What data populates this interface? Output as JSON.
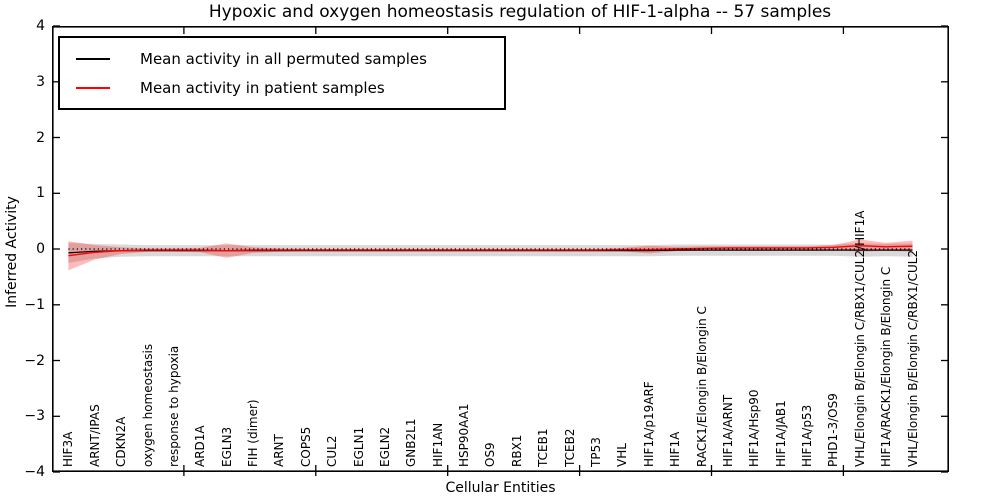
{
  "title": "Hypoxic and oxygen homeostasis regulation of HIF-1-alpha -- 57 samples",
  "axes": {
    "ylabel": "Inferred Activity",
    "xlabel": "Cellular Entities",
    "ytick_labels": [
      "4",
      "3",
      "2",
      "1",
      "0",
      "−1",
      "−2",
      "−3",
      "−4"
    ]
  },
  "legend": {
    "items": [
      {
        "label": "Mean activity in all permuted samples",
        "color": "#000000"
      },
      {
        "label": "Mean activity in patient samples",
        "color": "#ff0000"
      }
    ]
  },
  "colors": {
    "frame": "#000000",
    "permuted_line": "#000000",
    "patient_line": "#ff0000",
    "permuted_band": "rgba(128,128,128,0.30)",
    "patient_band": "rgba(255,0,0,0.27)"
  },
  "chart_data": {
    "type": "line",
    "title": "Hypoxic and oxygen homeostasis regulation of HIF-1-alpha -- 57 samples",
    "xlabel": "Cellular Entities",
    "ylabel": "Inferred Activity",
    "ylim": [
      -4,
      4
    ],
    "yticks": [
      4,
      3,
      2,
      1,
      0,
      -1,
      -2,
      -3,
      -4
    ],
    "xtick_positions": [
      5,
      10,
      15,
      20,
      25,
      30
    ],
    "zero_line": true,
    "grid": false,
    "legend_position": "upper left",
    "categories": [
      "HIF3A",
      "ARNT/IPAS",
      "CDKN2A",
      "oxygen homeostasis",
      "response to hypoxia",
      "ARD1A",
      "EGLN3",
      "FIH (dimer)",
      "ARNT",
      "COPS5",
      "CUL2",
      "EGLN1",
      "EGLN2",
      "GNB2L1",
      "HIF1AN",
      "HSP90AA1",
      "OS9",
      "RBX1",
      "TCEB1",
      "TCEB2",
      "TP53",
      "VHL",
      "HIF1A/p19ARF",
      "HIF1A",
      "RACK1/Elongin B/Elongin C",
      "HIF1A/ARNT",
      "HIF1A/Hsp90",
      "HIF1A/JAB1",
      "HIF1A/p53",
      "PHD1-3/OS9",
      "VHL/Elongin B/Elongin C/RBX1/CUL2/HIF1A",
      "HIF1A/RACK1/Elongin B/Elongin C",
      "VHL/Elongin B/Elongin C/RBX1/CUL2"
    ],
    "series": [
      {
        "name": "Mean activity in all permuted samples",
        "color": "#000000",
        "line_width": 1.2,
        "band_fill": "rgba(128,128,128,0.30)",
        "values": [
          -0.07,
          -0.04,
          -0.03,
          -0.03,
          -0.03,
          -0.03,
          -0.03,
          -0.03,
          -0.03,
          -0.03,
          -0.03,
          -0.03,
          -0.03,
          -0.03,
          -0.03,
          -0.03,
          -0.03,
          -0.03,
          -0.03,
          -0.03,
          -0.03,
          -0.03,
          -0.03,
          -0.02,
          -0.02,
          -0.02,
          -0.02,
          -0.02,
          -0.02,
          -0.02,
          -0.02,
          -0.02,
          -0.02
        ],
        "band": [
          0.18,
          0.13,
          0.11,
          0.1,
          0.1,
          0.1,
          0.1,
          0.1,
          0.1,
          0.1,
          0.1,
          0.1,
          0.1,
          0.1,
          0.1,
          0.1,
          0.1,
          0.1,
          0.1,
          0.1,
          0.1,
          0.1,
          0.1,
          0.1,
          0.1,
          0.1,
          0.1,
          0.1,
          0.1,
          0.1,
          0.12,
          0.11,
          0.12
        ]
      },
      {
        "name": "Mean activity in patient samples",
        "color": "#ff0000",
        "line_width": 1.4,
        "band_fill": "rgba(255,0,0,0.27)",
        "values": [
          -0.12,
          -0.06,
          -0.03,
          -0.02,
          -0.02,
          -0.02,
          -0.03,
          -0.02,
          -0.02,
          -0.02,
          -0.02,
          -0.02,
          -0.02,
          -0.02,
          -0.02,
          -0.02,
          -0.02,
          -0.02,
          -0.02,
          -0.02,
          -0.02,
          -0.01,
          -0.01,
          0.0,
          0.01,
          0.02,
          0.02,
          0.02,
          0.02,
          0.03,
          0.06,
          0.04,
          0.05
        ],
        "band": [
          0.26,
          0.13,
          0.06,
          0.03,
          0.03,
          0.04,
          0.13,
          0.05,
          0.03,
          0.02,
          0.02,
          0.02,
          0.02,
          0.02,
          0.02,
          0.02,
          0.02,
          0.02,
          0.02,
          0.02,
          0.02,
          0.03,
          0.07,
          0.04,
          0.04,
          0.03,
          0.03,
          0.03,
          0.03,
          0.04,
          0.11,
          0.07,
          0.1
        ]
      }
    ]
  }
}
